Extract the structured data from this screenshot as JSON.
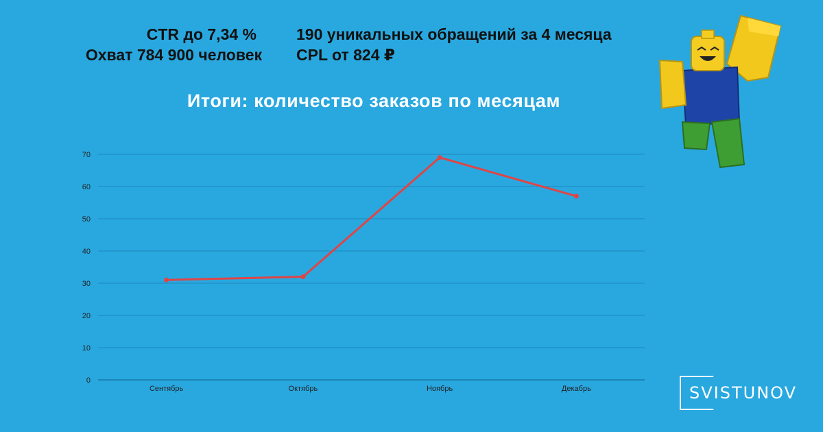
{
  "stats": {
    "ctr": "CTR до 7,34 %",
    "reach": "Охват 784 900 человек",
    "appeals": "190 уникальных обращений за 4 месяца",
    "cpl": "CPL от 824 ₽"
  },
  "logo": {
    "text": "SVISTUNOV"
  },
  "colors": {
    "background": "#29a8e0",
    "line": "#e04545",
    "grid": "#1a7fb0"
  },
  "chart_data": {
    "type": "line",
    "title": "Итоги: количество заказов по месяцам",
    "categories": [
      "Сентябрь",
      "Октябрь",
      "Ноябрь",
      "Декабрь"
    ],
    "values": [
      31,
      32,
      69,
      57
    ],
    "yticks": [
      0,
      10,
      20,
      30,
      40,
      50,
      60,
      70
    ],
    "ylim": [
      0,
      70
    ],
    "xlabel": "",
    "ylabel": "",
    "grid": true
  }
}
